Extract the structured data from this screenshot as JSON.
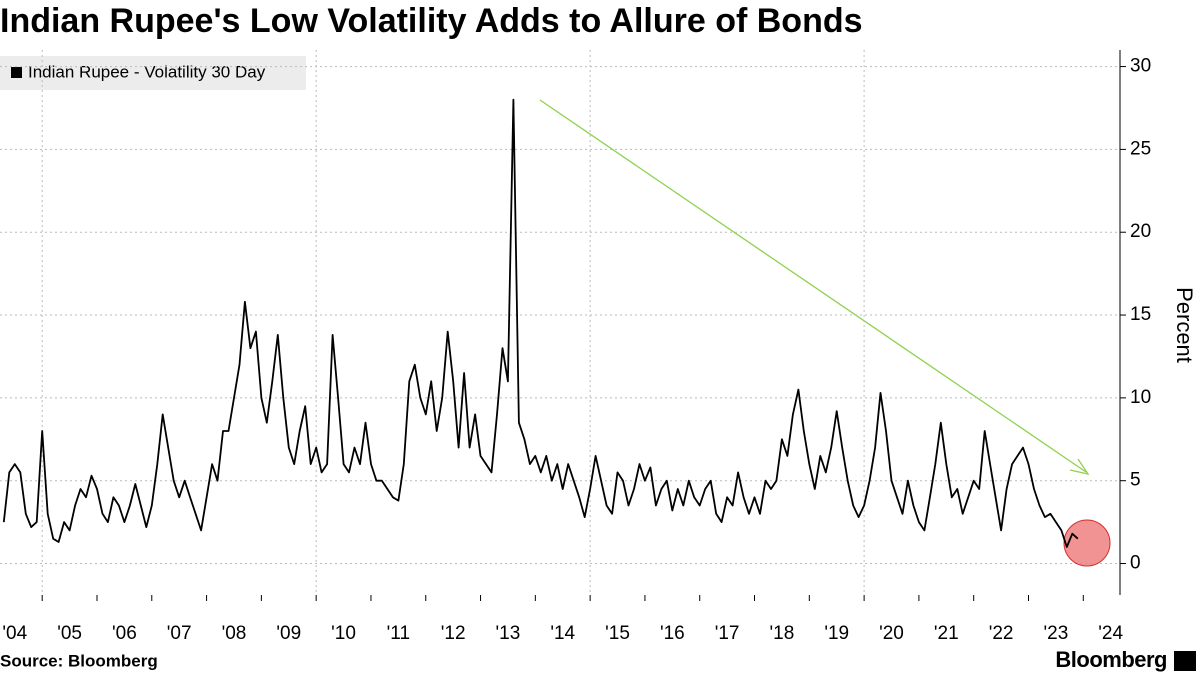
{
  "chart_data": {
    "type": "line",
    "title": "Indian Rupee's Low Volatility Adds to Allure of Bonds",
    "ylabel": "Percent",
    "source": "Source: Bloomberg",
    "brand": "Bloomberg",
    "xlim": [
      2004.23,
      2024.67
    ],
    "ylim": [
      -1.9,
      31
    ],
    "yticks": [
      0,
      5,
      10,
      15,
      20,
      25,
      30
    ],
    "xticks": [
      {
        "value": 2004,
        "label": "'04"
      },
      {
        "value": 2005,
        "label": "'05"
      },
      {
        "value": 2006,
        "label": "'06"
      },
      {
        "value": 2007,
        "label": "'07"
      },
      {
        "value": 2008,
        "label": "'08"
      },
      {
        "value": 2009,
        "label": "'09"
      },
      {
        "value": 2010,
        "label": "'10"
      },
      {
        "value": 2011,
        "label": "'11"
      },
      {
        "value": 2012,
        "label": "'12"
      },
      {
        "value": 2013,
        "label": "'13"
      },
      {
        "value": 2014,
        "label": "'14"
      },
      {
        "value": 2015,
        "label": "'15"
      },
      {
        "value": 2016,
        "label": "'16"
      },
      {
        "value": 2017,
        "label": "'17"
      },
      {
        "value": 2018,
        "label": "'18"
      },
      {
        "value": 2019,
        "label": "'19"
      },
      {
        "value": 2020,
        "label": "'20"
      },
      {
        "value": 2021,
        "label": "'21"
      },
      {
        "value": 2022,
        "label": "'22"
      },
      {
        "value": 2023,
        "label": "'23"
      },
      {
        "value": 2024,
        "label": "'24"
      }
    ],
    "grid": true,
    "legend": "top-left",
    "x": [
      2004.3,
      2004.4,
      2004.5,
      2004.6,
      2004.7,
      2004.8,
      2004.9,
      2005.0,
      2005.1,
      2005.2,
      2005.3,
      2005.4,
      2005.5,
      2005.6,
      2005.7,
      2005.8,
      2005.9,
      2006.0,
      2006.1,
      2006.2,
      2006.3,
      2006.4,
      2006.5,
      2006.6,
      2006.7,
      2006.8,
      2006.9,
      2007.0,
      2007.1,
      2007.2,
      2007.3,
      2007.4,
      2007.5,
      2007.6,
      2007.7,
      2007.8,
      2007.9,
      2008.0,
      2008.1,
      2008.2,
      2008.3,
      2008.4,
      2008.5,
      2008.6,
      2008.7,
      2008.8,
      2008.9,
      2009.0,
      2009.1,
      2009.2,
      2009.3,
      2009.4,
      2009.5,
      2009.6,
      2009.7,
      2009.8,
      2009.9,
      2010.0,
      2010.1,
      2010.2,
      2010.3,
      2010.4,
      2010.5,
      2010.6,
      2010.7,
      2010.8,
      2010.9,
      2011.0,
      2011.1,
      2011.2,
      2011.3,
      2011.4,
      2011.5,
      2011.6,
      2011.7,
      2011.8,
      2011.9,
      2012.0,
      2012.1,
      2012.2,
      2012.3,
      2012.4,
      2012.5,
      2012.6,
      2012.7,
      2012.8,
      2012.9,
      2013.0,
      2013.1,
      2013.2,
      2013.3,
      2013.4,
      2013.5,
      2013.6,
      2013.7,
      2013.8,
      2013.9,
      2014.0,
      2014.1,
      2014.2,
      2014.3,
      2014.4,
      2014.5,
      2014.6,
      2014.7,
      2014.8,
      2014.9,
      2015.0,
      2015.1,
      2015.2,
      2015.3,
      2015.4,
      2015.5,
      2015.6,
      2015.7,
      2015.8,
      2015.9,
      2016.0,
      2016.1,
      2016.2,
      2016.3,
      2016.4,
      2016.5,
      2016.6,
      2016.7,
      2016.8,
      2016.9,
      2017.0,
      2017.1,
      2017.2,
      2017.3,
      2017.4,
      2017.5,
      2017.6,
      2017.7,
      2017.8,
      2017.9,
      2018.0,
      2018.1,
      2018.2,
      2018.3,
      2018.4,
      2018.5,
      2018.6,
      2018.7,
      2018.8,
      2018.9,
      2019.0,
      2019.1,
      2019.2,
      2019.3,
      2019.4,
      2019.5,
      2019.6,
      2019.7,
      2019.8,
      2019.9,
      2020.0,
      2020.1,
      2020.2,
      2020.3,
      2020.4,
      2020.5,
      2020.6,
      2020.7,
      2020.8,
      2020.9,
      2021.0,
      2021.1,
      2021.2,
      2021.3,
      2021.4,
      2021.5,
      2021.6,
      2021.7,
      2021.8,
      2021.9,
      2022.0,
      2022.1,
      2022.2,
      2022.3,
      2022.4,
      2022.5,
      2022.6,
      2022.7,
      2022.8,
      2022.9,
      2023.0,
      2023.1,
      2023.2,
      2023.3,
      2023.4,
      2023.5,
      2023.6,
      2023.7,
      2023.8,
      2023.9
    ],
    "series": [
      {
        "name": "Indian Rupee - Volatility 30 Day",
        "color": "#000000",
        "values": [
          2.5,
          5.5,
          6,
          5.5,
          3,
          2.2,
          2.5,
          8,
          3,
          1.5,
          1.3,
          2.5,
          2,
          3.5,
          4.5,
          4,
          5.3,
          4.5,
          3,
          2.5,
          4,
          3.5,
          2.5,
          3.5,
          4.8,
          3.5,
          2.2,
          3.5,
          6,
          9,
          7,
          5,
          4,
          5,
          4,
          3,
          2,
          4,
          6,
          5,
          8,
          8,
          10,
          12,
          15.8,
          13,
          14,
          10,
          8.5,
          11,
          13.8,
          10,
          7,
          6,
          8,
          9.5,
          6,
          7,
          5.5,
          6,
          13.8,
          10,
          6,
          5.5,
          7,
          6,
          8.5,
          6,
          5,
          5,
          4.5,
          4,
          3.8,
          6,
          11,
          12,
          10,
          9,
          11,
          8,
          10,
          14,
          11,
          7,
          11.5,
          7,
          9,
          6.5,
          6,
          5.5,
          9,
          13,
          11,
          28,
          8.5,
          7.5,
          6,
          6.5,
          5.5,
          6.5,
          5,
          6,
          4.5,
          6,
          5,
          4,
          2.8,
          4.5,
          6.5,
          5,
          3.5,
          3,
          5.5,
          5,
          3.5,
          4.5,
          6,
          5,
          5.8,
          3.5,
          4.5,
          5,
          3.2,
          4.5,
          3.5,
          5,
          4,
          3.5,
          4.5,
          5,
          3,
          2.5,
          4,
          3.5,
          5.5,
          4,
          3,
          4,
          3,
          5,
          4.5,
          5,
          7.5,
          6.5,
          9,
          10.5,
          8,
          6,
          4.5,
          6.5,
          5.5,
          7,
          9.2,
          7,
          5,
          3.5,
          2.8,
          3.5,
          5,
          7,
          10.3,
          8,
          5,
          4,
          3,
          5,
          3.5,
          2.5,
          2,
          4,
          6,
          8.5,
          6,
          4,
          4.5,
          3,
          4,
          5,
          4.5,
          8,
          6,
          4,
          2,
          4.5,
          6,
          6.5,
          7,
          6,
          4.5,
          3.5,
          2.8,
          3,
          2.5,
          2,
          1,
          1.8,
          1.5
        ]
      }
    ]
  }
}
